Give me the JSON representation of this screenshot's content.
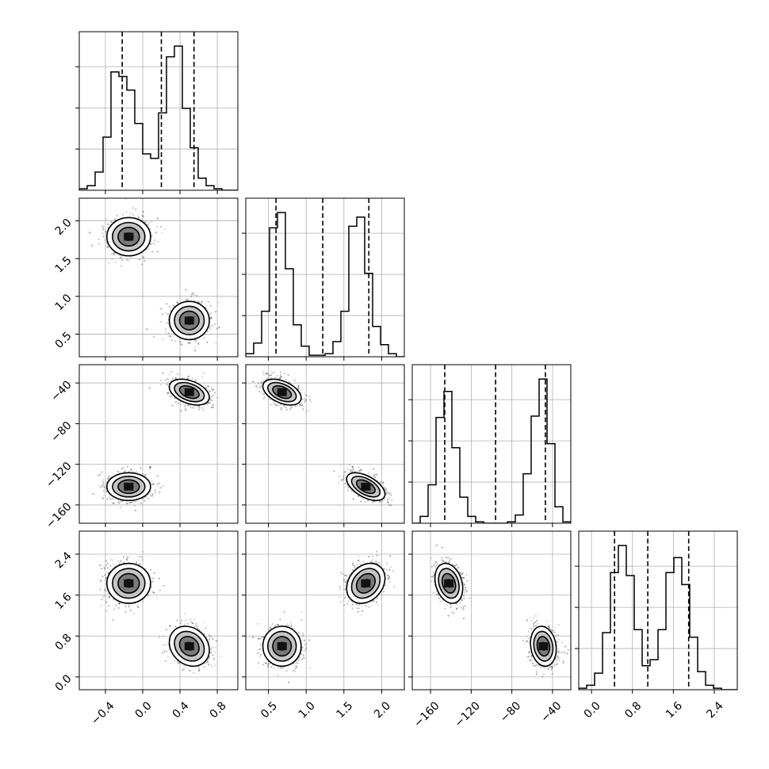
{
  "chart_data": {
    "type": "corner",
    "parameters": 4,
    "grid": true,
    "params": [
      {
        "range": [
          -0.68,
          1.02
        ],
        "ticks": [
          -0.4,
          0.0,
          0.4,
          0.8
        ],
        "tick_labels": [
          "−0.4",
          "0.0",
          "0.4",
          "0.8"
        ],
        "row_ticks": [],
        "row_tick_labels": [],
        "quantiles": [
          -0.22,
          0.2,
          0.55
        ],
        "modes": [
          {
            "mu": -0.15,
            "sd": 0.12,
            "w": 0.5
          },
          {
            "mu": 0.5,
            "sd": 0.11,
            "w": 0.5
          }
        ],
        "hist": {
          "edges": [
            -0.68,
            -0.595,
            -0.51,
            -0.425,
            -0.34,
            -0.255,
            -0.17,
            -0.085,
            0.0,
            0.085,
            0.17,
            0.255,
            0.34,
            0.425,
            0.51,
            0.595,
            0.68,
            0.765,
            0.85,
            0.935,
            1.02
          ],
          "counts": [
            1,
            3,
            12,
            35,
            78,
            75,
            66,
            44,
            24,
            21,
            51,
            88,
            95,
            54,
            28,
            8,
            3,
            1,
            0,
            0
          ]
        }
      },
      {
        "range": [
          0.2,
          2.3
        ],
        "ticks": [
          0.5,
          1.0,
          1.5,
          2.0
        ],
        "tick_labels": [
          "0.5",
          "1.0",
          "1.5",
          "2.0"
        ],
        "row_ticks": [
          0.5,
          1.0,
          1.5,
          2.0
        ],
        "row_tick_labels": [
          "0.5",
          "1.0",
          "1.5",
          "2.0"
        ],
        "quantiles": [
          0.6,
          1.22,
          1.83
        ],
        "modes": [
          {
            "mu": 0.68,
            "sd": 0.13,
            "w": 0.5
          },
          {
            "mu": 1.79,
            "sd": 0.13,
            "w": 0.5
          }
        ],
        "hist": {
          "edges": [
            0.2,
            0.305,
            0.41,
            0.515,
            0.62,
            0.725,
            0.83,
            0.935,
            1.04,
            1.145,
            1.25,
            1.355,
            1.46,
            1.565,
            1.67,
            1.775,
            1.88,
            1.985,
            2.09,
            2.195,
            2.3
          ],
          "counts": [
            2,
            9,
            30,
            85,
            95,
            58,
            21,
            7,
            1,
            1,
            2,
            10,
            30,
            86,
            92,
            55,
            20,
            8,
            2,
            0
          ]
        }
      },
      {
        "range": [
          -178,
          -22
        ],
        "ticks": [
          -160,
          -120,
          -80,
          -40
        ],
        "tick_labels": [
          "−160",
          "−120",
          "−80",
          "−40"
        ],
        "row_ticks": [
          -160,
          -120,
          -80,
          -40
        ],
        "row_tick_labels": [
          "−160",
          "−120",
          "−80",
          "−40"
        ],
        "quantiles": [
          -146,
          -96,
          -47
        ],
        "modes": [
          {
            "mu": -142,
            "sd": 7.0,
            "w": 0.5
          },
          {
            "mu": -49,
            "sd": 6.5,
            "w": 0.5
          }
        ],
        "hist": {
          "edges": [
            -178,
            -170.2,
            -162.4,
            -154.6,
            -146.8,
            -139,
            -131.2,
            -123.4,
            -115.6,
            -107.8,
            -100,
            -92.2,
            -84.4,
            -76.6,
            -68.8,
            -61,
            -53.2,
            -45.4,
            -37.6,
            -29.8,
            -22
          ],
          "counts": [
            0,
            5,
            28,
            77,
            96,
            55,
            19,
            5,
            1,
            0,
            0,
            0,
            1,
            6,
            36,
            78,
            105,
            58,
            12,
            1
          ]
        }
      },
      {
        "range": [
          -0.25,
          2.85
        ],
        "ticks": [
          0.0,
          0.8,
          1.6,
          2.4
        ],
        "tick_labels": [
          "0.0",
          "0.8",
          "1.6",
          "2.4"
        ],
        "row_ticks": [
          0.0,
          0.8,
          1.6,
          2.4
        ],
        "row_tick_labels": [
          "0.0",
          "0.8",
          "1.6",
          "2.4"
        ],
        "quantiles": [
          0.45,
          1.1,
          1.9
        ],
        "modes": [
          {
            "mu": 0.6,
            "sd": 0.2,
            "w": 0.5
          },
          {
            "mu": 1.83,
            "sd": 0.2,
            "w": 0.5
          }
        ],
        "hist": {
          "edges": [
            -0.25,
            -0.095,
            0.06,
            0.215,
            0.37,
            0.525,
            0.68,
            0.835,
            0.99,
            1.145,
            1.3,
            1.455,
            1.61,
            1.765,
            1.92,
            2.075,
            2.23,
            2.385,
            2.54,
            2.695,
            2.85
          ],
          "counts": [
            1,
            3,
            11,
            38,
            78,
            96,
            76,
            40,
            16,
            20,
            40,
            78,
            88,
            70,
            35,
            12,
            3,
            1,
            0,
            0
          ]
        }
      }
    ],
    "clusters": [
      {
        "mean": [
          -0.15,
          1.79,
          -142,
          1.83
        ],
        "sd": [
          0.12,
          0.13,
          7.0,
          0.2
        ]
      },
      {
        "mean": [
          0.5,
          0.68,
          -49,
          0.6
        ],
        "sd": [
          0.11,
          0.13,
          6.5,
          0.2
        ]
      }
    ],
    "pair_correlations": {
      "1-0": [
        0.0,
        0.0
      ],
      "2-0": [
        0.0,
        -0.4
      ],
      "2-1": [
        -0.55,
        -0.45
      ],
      "3-0": [
        0.0,
        -0.2
      ],
      "3-1": [
        0.25,
        0.0
      ],
      "3-2": [
        -0.25,
        -0.15
      ]
    }
  }
}
